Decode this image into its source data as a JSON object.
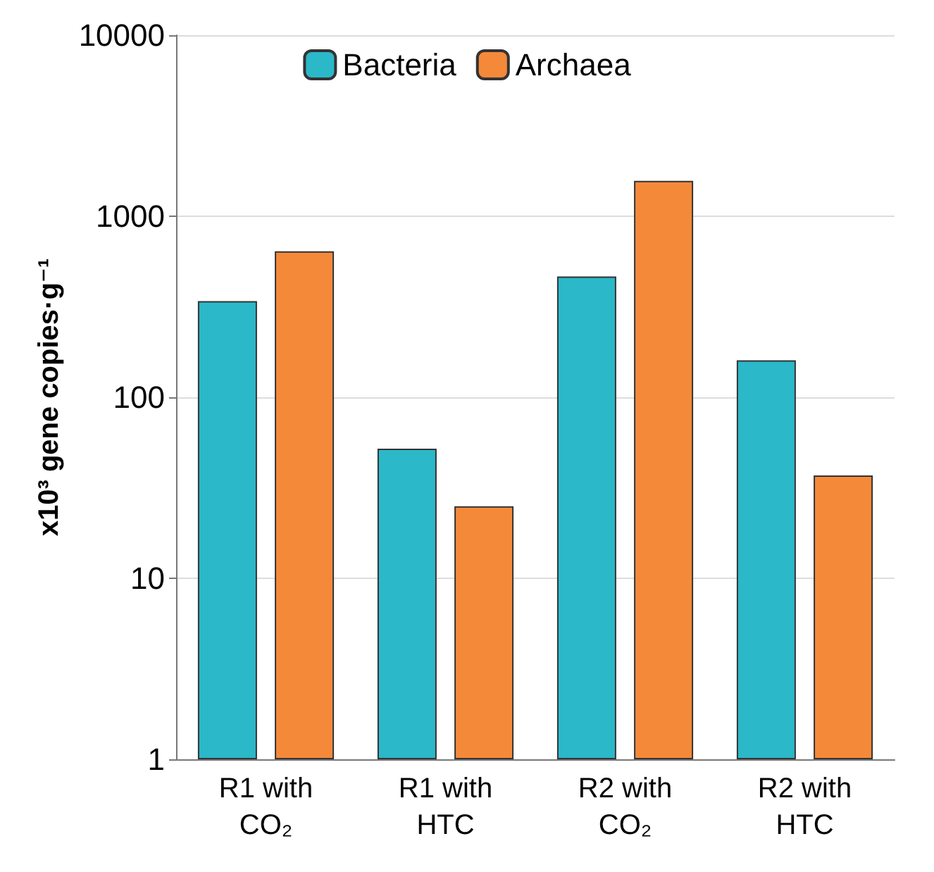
{
  "chart_data": {
    "type": "bar",
    "ylabel": "x10³ gene copies·g⁻¹",
    "categories": [
      "R1 with\nCO₂",
      "R1 with\nHTC",
      "R2 with\nCO₂",
      "R2 with\nHTC"
    ],
    "series": [
      {
        "name": "Bacteria",
        "color": "#2bb8c8",
        "values": [
          340,
          52,
          465,
          160
        ]
      },
      {
        "name": "Archaea",
        "color": "#f5893a",
        "values": [
          640,
          25,
          1570,
          37
        ]
      }
    ],
    "log": "y",
    "ylim": [
      1,
      10000
    ],
    "yticks": [
      1,
      10,
      100,
      1000,
      10000
    ],
    "grid": "y",
    "legend": "top"
  }
}
